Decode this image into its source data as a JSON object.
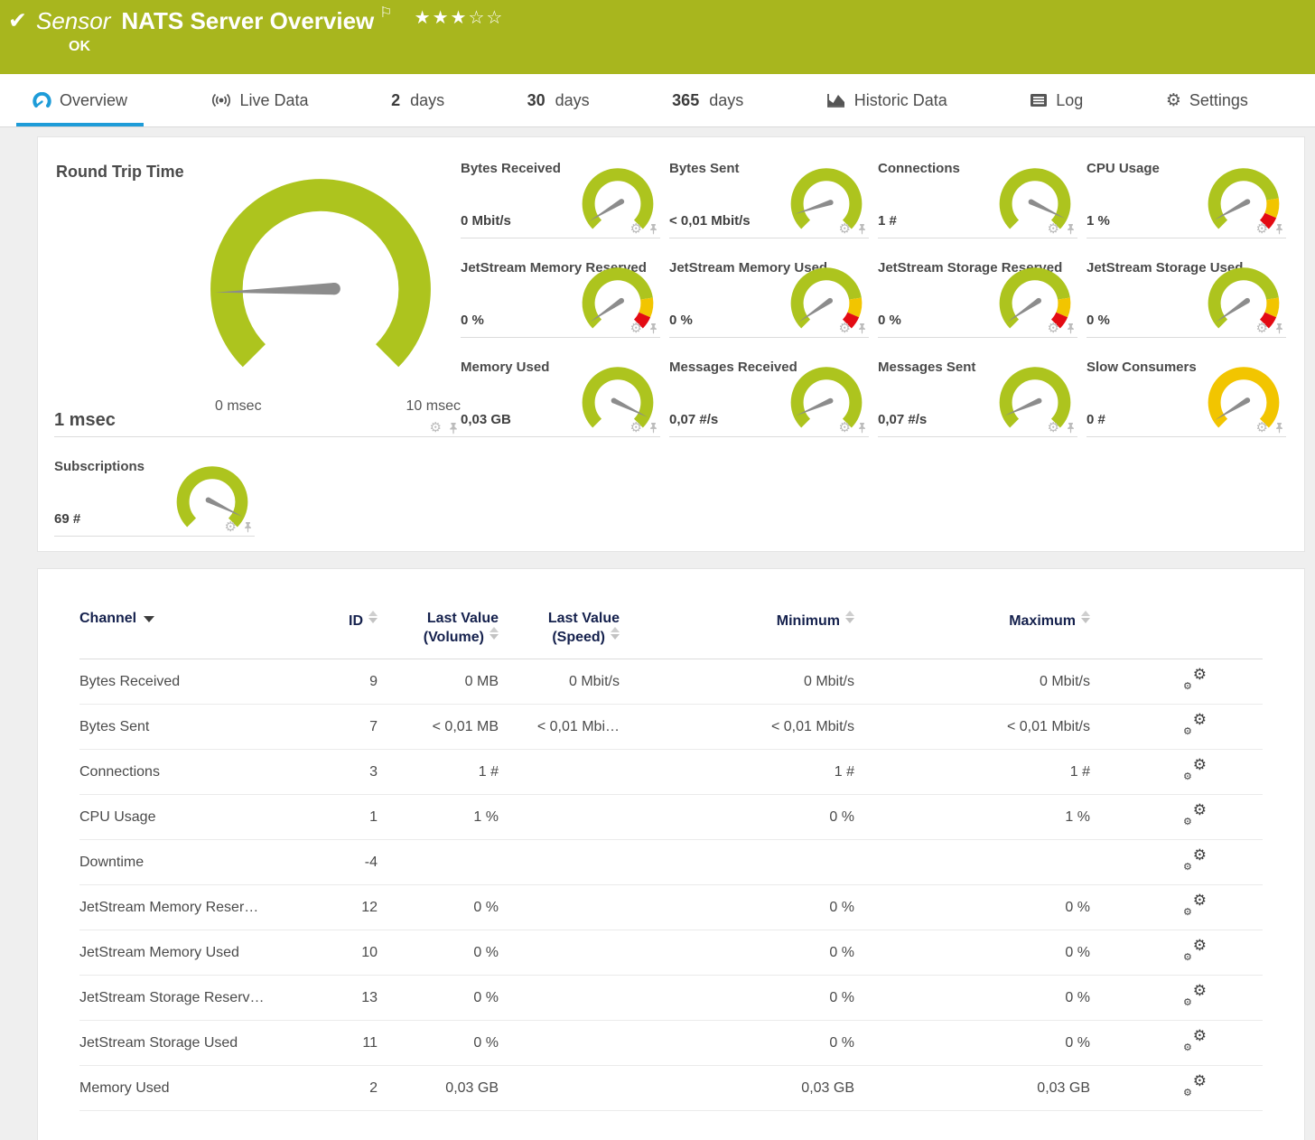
{
  "colors": {
    "header_bg": "#a8b61e",
    "accent_blue": "#1e9cd8",
    "gauge_green": "#adc41e",
    "gauge_yellow": "#f2c500",
    "gauge_red": "#e30b13",
    "needle": "#8c8c8c"
  },
  "header": {
    "check_icon": "✔",
    "kind": "Sensor",
    "title": "NATS Server Overview",
    "flag_icon": "⚐",
    "status": "OK",
    "rating": {
      "filled": 3,
      "total": 5
    }
  },
  "tabs": [
    {
      "label": "Overview",
      "icon": "gauge-icon",
      "active": true
    },
    {
      "label": "Live Data",
      "icon": "broadcast-icon"
    },
    {
      "prefix": "2",
      "label": "days"
    },
    {
      "prefix": "30",
      "label": "days"
    },
    {
      "prefix": "365",
      "label": "days"
    },
    {
      "label": "Historic Data",
      "icon": "area-chart-icon"
    },
    {
      "label": "Log",
      "icon": "log-icon"
    },
    {
      "label": "Settings",
      "icon": "gear-icon"
    }
  ],
  "gauge_panel": {
    "primary": {
      "title": "Round Trip Time",
      "value": "1 msec",
      "min_label": "0 msec",
      "max_label": "10 msec",
      "needle": 0.16,
      "style": "green"
    },
    "tiles": [
      {
        "title": "Bytes Received",
        "value": "0 Mbit/s",
        "needle": 0.05,
        "style": "green"
      },
      {
        "title": "Bytes Sent",
        "value": "< 0,01 Mbit/s",
        "needle": 0.1,
        "style": "green"
      },
      {
        "title": "Connections",
        "value": "1 #",
        "needle": 0.93,
        "style": "green"
      },
      {
        "title": "CPU Usage",
        "value": "1 %",
        "needle": 0.06,
        "style": "warn"
      },
      {
        "title": "JetStream Memory Reserved",
        "value": "0 %",
        "needle": 0.04,
        "style": "warn"
      },
      {
        "title": "JetStream Memory Used",
        "value": "0 %",
        "needle": 0.04,
        "style": "warn"
      },
      {
        "title": "JetStream Storage Reserved",
        "value": "0 %",
        "needle": 0.04,
        "style": "warn"
      },
      {
        "title": "JetStream Storage Used",
        "value": "0 %",
        "needle": 0.04,
        "style": "warn"
      },
      {
        "title": "Memory Used",
        "value": "0,03 GB",
        "needle": 0.93,
        "style": "green"
      },
      {
        "title": "Messages Received",
        "value": "0,07 #/s",
        "needle": 0.08,
        "style": "green"
      },
      {
        "title": "Messages Sent",
        "value": "0,07 #/s",
        "needle": 0.08,
        "style": "green"
      },
      {
        "title": "Slow Consumers",
        "value": "0 #",
        "needle": 0.05,
        "style": "yellow"
      },
      {
        "title": "Subscriptions",
        "value": "69 #",
        "needle": 0.93,
        "style": "green",
        "slot": "left"
      }
    ],
    "gauge_styles": {
      "green": [
        [
          "green",
          0,
          1
        ]
      ],
      "warn": [
        [
          "green",
          0,
          0.8
        ],
        [
          "yellow",
          0.8,
          0.92
        ],
        [
          "red",
          0.92,
          1
        ]
      ],
      "yellow": [
        [
          "yellow",
          0,
          1
        ]
      ]
    }
  },
  "table": {
    "columns": {
      "channel": {
        "label": "Channel",
        "sorted": "desc"
      },
      "id": {
        "label": "ID"
      },
      "volume": {
        "label": "Last Value",
        "sub": "(Volume)"
      },
      "speed": {
        "label": "Last Value",
        "sub": "(Speed)"
      },
      "min": {
        "label": "Minimum"
      },
      "max": {
        "label": "Maximum"
      }
    },
    "rows": [
      {
        "channel": "Bytes Received",
        "id": "9",
        "volume": "0 MB",
        "speed": "0 Mbit/s",
        "min": "0 Mbit/s",
        "max": "0 Mbit/s"
      },
      {
        "channel": "Bytes Sent",
        "id": "7",
        "volume": "< 0,01 MB",
        "speed": "< 0,01 Mbi…",
        "min": "< 0,01 Mbit/s",
        "max": "< 0,01 Mbit/s"
      },
      {
        "channel": "Connections",
        "id": "3",
        "volume": "1 #",
        "speed": "",
        "min": "1 #",
        "max": "1 #"
      },
      {
        "channel": "CPU Usage",
        "id": "1",
        "volume": "1 %",
        "speed": "",
        "min": "0 %",
        "max": "1 %"
      },
      {
        "channel": "Downtime",
        "id": "-4",
        "volume": "",
        "speed": "",
        "min": "",
        "max": ""
      },
      {
        "channel": "JetStream Memory Reser…",
        "id": "12",
        "volume": "0 %",
        "speed": "",
        "min": "0 %",
        "max": "0 %"
      },
      {
        "channel": "JetStream Memory Used",
        "id": "10",
        "volume": "0 %",
        "speed": "",
        "min": "0 %",
        "max": "0 %"
      },
      {
        "channel": "JetStream Storage Reserv…",
        "id": "13",
        "volume": "0 %",
        "speed": "",
        "min": "0 %",
        "max": "0 %"
      },
      {
        "channel": "JetStream Storage Used",
        "id": "11",
        "volume": "0 %",
        "speed": "",
        "min": "0 %",
        "max": "0 %"
      },
      {
        "channel": "Memory Used",
        "id": "2",
        "volume": "0,03 GB",
        "speed": "",
        "min": "0,03 GB",
        "max": "0,03 GB"
      }
    ]
  }
}
